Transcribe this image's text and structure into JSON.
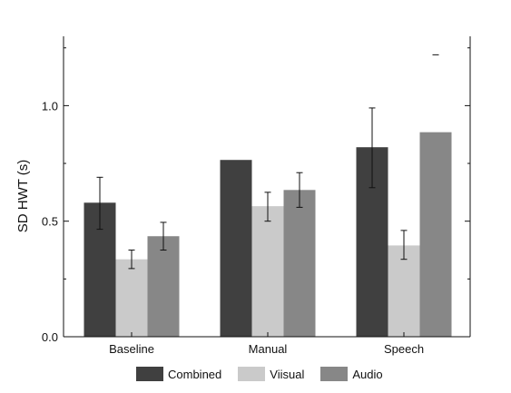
{
  "chart_data": {
    "type": "bar",
    "categories": [
      "Baseline",
      "Manual",
      "Speech"
    ],
    "ylabel": "SD HWT (s)",
    "xlabel": "",
    "ylim": [
      0,
      1.3
    ],
    "yticks": [
      0.0,
      0.5,
      1.0
    ],
    "ytick_labels": [
      "0.0",
      "0.5",
      "1.0"
    ],
    "legend_position": "bottom",
    "series": [
      {
        "name": "Combined",
        "color": "#404040",
        "values": [
          0.58,
          0.765,
          0.82
        ],
        "err_low": [
          0.465,
          null,
          0.645
        ],
        "err_high": [
          0.69,
          null,
          0.99
        ]
      },
      {
        "name": "Viisual",
        "color": "#cacaca",
        "values": [
          0.335,
          0.565,
          0.395
        ],
        "err_low": [
          0.295,
          0.5,
          0.335
        ],
        "err_high": [
          0.375,
          0.625,
          0.46
        ]
      },
      {
        "name": "Audio",
        "color": "#878787",
        "values": [
          0.435,
          0.635,
          0.885
        ],
        "err_low": [
          0.375,
          0.56,
          null
        ],
        "err_high": [
          0.495,
          0.71,
          1.22
        ]
      }
    ]
  }
}
